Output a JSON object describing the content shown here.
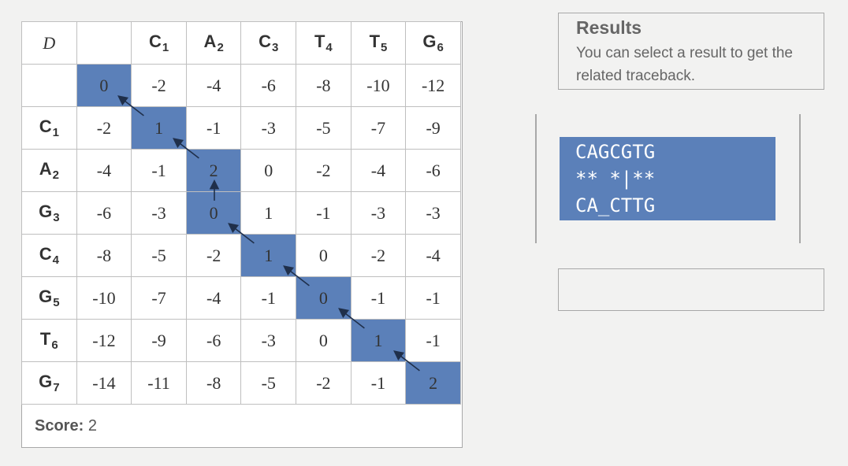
{
  "matrix": {
    "corner": "D",
    "columns": [
      {
        "base": "C",
        "idx": "1"
      },
      {
        "base": "A",
        "idx": "2"
      },
      {
        "base": "C",
        "idx": "3"
      },
      {
        "base": "T",
        "idx": "4"
      },
      {
        "base": "T",
        "idx": "5"
      },
      {
        "base": "G",
        "idx": "6"
      }
    ],
    "rows": [
      {
        "base": "",
        "idx": "",
        "values": [
          "0",
          "-2",
          "-4",
          "-6",
          "-8",
          "-10",
          "-12"
        ]
      },
      {
        "base": "C",
        "idx": "1",
        "values": [
          "-2",
          "1",
          "-1",
          "-3",
          "-5",
          "-7",
          "-9"
        ]
      },
      {
        "base": "A",
        "idx": "2",
        "values": [
          "-4",
          "-1",
          "2",
          "0",
          "-2",
          "-4",
          "-6"
        ]
      },
      {
        "base": "G",
        "idx": "3",
        "values": [
          "-6",
          "-3",
          "0",
          "1",
          "-1",
          "-3",
          "-3"
        ]
      },
      {
        "base": "C",
        "idx": "4",
        "values": [
          "-8",
          "-5",
          "-2",
          "1",
          "0",
          "-2",
          "-4"
        ]
      },
      {
        "base": "G",
        "idx": "5",
        "values": [
          "-10",
          "-7",
          "-4",
          "-1",
          "0",
          "-1",
          "-1"
        ]
      },
      {
        "base": "T",
        "idx": "6",
        "values": [
          "-12",
          "-9",
          "-6",
          "-3",
          "0",
          "1",
          "-1"
        ]
      },
      {
        "base": "G",
        "idx": "7",
        "values": [
          "-14",
          "-11",
          "-8",
          "-5",
          "-2",
          "-1",
          "2"
        ]
      }
    ],
    "path": [
      [
        0,
        0
      ],
      [
        1,
        1
      ],
      [
        2,
        2
      ],
      [
        3,
        2
      ],
      [
        4,
        3
      ],
      [
        5,
        4
      ],
      [
        6,
        5
      ],
      [
        7,
        6
      ]
    ],
    "highlight_color": "#5b80b9"
  },
  "score": {
    "label": "Score:",
    "value": "2"
  },
  "results": {
    "title": "Results",
    "hint": "You can select a result to get the related traceback.",
    "items": [
      {
        "lines": [
          "CAGCGTG",
          "** *|**",
          "CA_CTTG"
        ],
        "selected": true
      }
    ]
  }
}
